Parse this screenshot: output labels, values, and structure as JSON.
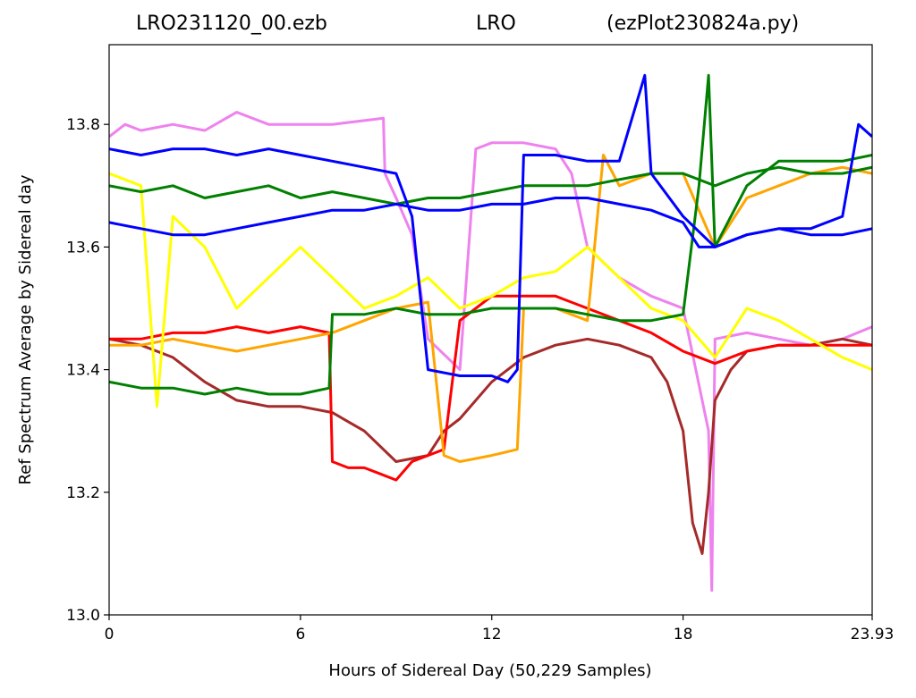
{
  "title": {
    "left": "LRO231120_00.ezb",
    "center": "LRO",
    "right": "(ezPlot230824a.py)"
  },
  "chart_data": {
    "type": "line",
    "xlabel": "Hours of Sidereal Day  (50,229 Samples)",
    "ylabel": "Ref Spectrum Average by Sidereal day",
    "xlim": [
      0,
      23.93
    ],
    "ylim": [
      13.0,
      13.93
    ],
    "xticks": [
      0,
      6,
      12,
      18,
      23.93
    ],
    "xtick_labels": [
      "0",
      "6",
      "12",
      "18",
      "23.93"
    ],
    "yticks": [
      13.0,
      13.2,
      13.4,
      13.6,
      13.8
    ],
    "ytick_labels": [
      "13.0",
      "13.2",
      "13.4",
      "13.6",
      "13.8"
    ],
    "grid": false,
    "legend": "none",
    "series": [
      {
        "color": "#ee82ee",
        "points": [
          [
            0,
            13.78
          ],
          [
            0.5,
            13.8
          ],
          [
            1,
            13.79
          ],
          [
            2,
            13.8
          ],
          [
            3,
            13.79
          ],
          [
            4,
            13.82
          ],
          [
            5,
            13.8
          ],
          [
            6,
            13.8
          ],
          [
            7,
            13.8
          ],
          [
            8.6,
            13.81
          ],
          [
            8.65,
            13.72
          ],
          [
            9,
            13.68
          ],
          [
            9.5,
            13.62
          ],
          [
            10,
            13.45
          ],
          [
            11,
            13.4
          ],
          [
            11.5,
            13.76
          ],
          [
            12,
            13.77
          ],
          [
            13,
            13.77
          ],
          [
            14,
            13.76
          ],
          [
            14.5,
            13.72
          ],
          [
            15,
            13.6
          ],
          [
            16,
            13.55
          ],
          [
            17,
            13.52
          ],
          [
            18,
            13.5
          ],
          [
            18.8,
            13.3
          ],
          [
            18.9,
            13.04
          ],
          [
            19,
            13.45
          ],
          [
            20,
            13.46
          ],
          [
            21,
            13.45
          ],
          [
            22,
            13.44
          ],
          [
            23,
            13.45
          ],
          [
            23.93,
            13.47
          ]
        ]
      },
      {
        "color": "#a52a2a",
        "points": [
          [
            0,
            13.45
          ],
          [
            1,
            13.44
          ],
          [
            2,
            13.42
          ],
          [
            3,
            13.38
          ],
          [
            4,
            13.35
          ],
          [
            5,
            13.34
          ],
          [
            6,
            13.34
          ],
          [
            7,
            13.33
          ],
          [
            8,
            13.3
          ],
          [
            9,
            13.25
          ],
          [
            10,
            13.26
          ],
          [
            10.5,
            13.3
          ],
          [
            11,
            13.32
          ],
          [
            12,
            13.38
          ],
          [
            13,
            13.42
          ],
          [
            14,
            13.44
          ],
          [
            15,
            13.45
          ],
          [
            16,
            13.44
          ],
          [
            17,
            13.42
          ],
          [
            17.5,
            13.38
          ],
          [
            18,
            13.3
          ],
          [
            18.3,
            13.15
          ],
          [
            18.6,
            13.1
          ],
          [
            18.8,
            13.2
          ],
          [
            19,
            13.35
          ],
          [
            19.5,
            13.4
          ],
          [
            20,
            13.43
          ],
          [
            21,
            13.44
          ],
          [
            22,
            13.44
          ],
          [
            23,
            13.45
          ],
          [
            23.93,
            13.44
          ]
        ]
      },
      {
        "color": "#ff0000",
        "points": [
          [
            0,
            13.45
          ],
          [
            1,
            13.45
          ],
          [
            2,
            13.46
          ],
          [
            3,
            13.46
          ],
          [
            4,
            13.47
          ],
          [
            5,
            13.46
          ],
          [
            6,
            13.47
          ],
          [
            6.9,
            13.46
          ],
          [
            7,
            13.25
          ],
          [
            7.5,
            13.24
          ],
          [
            8,
            13.24
          ],
          [
            8.5,
            13.23
          ],
          [
            9,
            13.22
          ],
          [
            9.5,
            13.25
          ],
          [
            10,
            13.26
          ],
          [
            10.5,
            13.27
          ],
          [
            11,
            13.48
          ],
          [
            11.5,
            13.5
          ],
          [
            12,
            13.52
          ],
          [
            13,
            13.52
          ],
          [
            14,
            13.52
          ],
          [
            15,
            13.5
          ],
          [
            16,
            13.48
          ],
          [
            17,
            13.46
          ],
          [
            18,
            13.43
          ],
          [
            19,
            13.41
          ],
          [
            20,
            13.43
          ],
          [
            21,
            13.44
          ],
          [
            22,
            13.44
          ],
          [
            23,
            13.44
          ],
          [
            23.93,
            13.44
          ]
        ]
      },
      {
        "color": "#ffa500",
        "points": [
          [
            0,
            13.44
          ],
          [
            1,
            13.44
          ],
          [
            2,
            13.45
          ],
          [
            3,
            13.44
          ],
          [
            4,
            13.43
          ],
          [
            5,
            13.44
          ],
          [
            6,
            13.45
          ],
          [
            7,
            13.46
          ],
          [
            8,
            13.48
          ],
          [
            9,
            13.5
          ],
          [
            10,
            13.51
          ],
          [
            10.5,
            13.26
          ],
          [
            11,
            13.25
          ],
          [
            12,
            13.26
          ],
          [
            12.8,
            13.27
          ],
          [
            13,
            13.5
          ],
          [
            14,
            13.5
          ],
          [
            15,
            13.48
          ],
          [
            15.5,
            13.75
          ],
          [
            16,
            13.7
          ],
          [
            17,
            13.72
          ],
          [
            18,
            13.72
          ],
          [
            19,
            13.6
          ],
          [
            20,
            13.68
          ],
          [
            21,
            13.7
          ],
          [
            22,
            13.72
          ],
          [
            23,
            13.73
          ],
          [
            23.93,
            13.72
          ]
        ]
      },
      {
        "color": "#ffff00",
        "points": [
          [
            0,
            13.72
          ],
          [
            1,
            13.7
          ],
          [
            1.5,
            13.34
          ],
          [
            2,
            13.65
          ],
          [
            3,
            13.6
          ],
          [
            4,
            13.5
          ],
          [
            5,
            13.55
          ],
          [
            6,
            13.6
          ],
          [
            7,
            13.55
          ],
          [
            8,
            13.5
          ],
          [
            9,
            13.52
          ],
          [
            10,
            13.55
          ],
          [
            11,
            13.5
          ],
          [
            12,
            13.52
          ],
          [
            13,
            13.55
          ],
          [
            14,
            13.56
          ],
          [
            15,
            13.6
          ],
          [
            16,
            13.55
          ],
          [
            17,
            13.5
          ],
          [
            18,
            13.48
          ],
          [
            19,
            13.42
          ],
          [
            20,
            13.5
          ],
          [
            21,
            13.48
          ],
          [
            22,
            13.45
          ],
          [
            23,
            13.42
          ],
          [
            23.93,
            13.4
          ]
        ]
      },
      {
        "color": "#008000",
        "points": [
          [
            0,
            13.38
          ],
          [
            1,
            13.37
          ],
          [
            2,
            13.37
          ],
          [
            3,
            13.36
          ],
          [
            4,
            13.37
          ],
          [
            5,
            13.36
          ],
          [
            6,
            13.36
          ],
          [
            6.9,
            13.37
          ],
          [
            7,
            13.49
          ],
          [
            8,
            13.49
          ],
          [
            9,
            13.5
          ],
          [
            10,
            13.49
          ],
          [
            11,
            13.49
          ],
          [
            12,
            13.5
          ],
          [
            13,
            13.5
          ],
          [
            14,
            13.5
          ],
          [
            15,
            13.49
          ],
          [
            16,
            13.48
          ],
          [
            17,
            13.48
          ],
          [
            18,
            13.49
          ],
          [
            18.5,
            13.7
          ],
          [
            18.8,
            13.88
          ],
          [
            19,
            13.6
          ],
          [
            20,
            13.7
          ],
          [
            21,
            13.74
          ],
          [
            22,
            13.74
          ],
          [
            23,
            13.74
          ],
          [
            23.93,
            13.75
          ]
        ]
      },
      {
        "color": "#008000",
        "points": [
          [
            0,
            13.7
          ],
          [
            1,
            13.69
          ],
          [
            2,
            13.7
          ],
          [
            3,
            13.68
          ],
          [
            4,
            13.69
          ],
          [
            5,
            13.7
          ],
          [
            6,
            13.68
          ],
          [
            7,
            13.69
          ],
          [
            8,
            13.68
          ],
          [
            9,
            13.67
          ],
          [
            10,
            13.68
          ],
          [
            11,
            13.68
          ],
          [
            12,
            13.69
          ],
          [
            13,
            13.7
          ],
          [
            14,
            13.7
          ],
          [
            15,
            13.7
          ],
          [
            16,
            13.71
          ],
          [
            17,
            13.72
          ],
          [
            18,
            13.72
          ],
          [
            19,
            13.7
          ],
          [
            20,
            13.72
          ],
          [
            21,
            13.73
          ],
          [
            22,
            13.72
          ],
          [
            23,
            13.72
          ],
          [
            23.93,
            13.73
          ]
        ]
      },
      {
        "color": "#0000ff",
        "points": [
          [
            0,
            13.76
          ],
          [
            1,
            13.75
          ],
          [
            2,
            13.76
          ],
          [
            3,
            13.76
          ],
          [
            4,
            13.75
          ],
          [
            5,
            13.76
          ],
          [
            6,
            13.75
          ],
          [
            7,
            13.74
          ],
          [
            8,
            13.73
          ],
          [
            9,
            13.72
          ],
          [
            9.5,
            13.65
          ],
          [
            10,
            13.4
          ],
          [
            11,
            13.39
          ],
          [
            12,
            13.39
          ],
          [
            12.5,
            13.38
          ],
          [
            12.8,
            13.4
          ],
          [
            13,
            13.75
          ],
          [
            14,
            13.75
          ],
          [
            15,
            13.74
          ],
          [
            16,
            13.74
          ],
          [
            16.8,
            13.88
          ],
          [
            17,
            13.72
          ],
          [
            18,
            13.65
          ],
          [
            19,
            13.6
          ],
          [
            20,
            13.62
          ],
          [
            21,
            13.63
          ],
          [
            22,
            13.63
          ],
          [
            23,
            13.65
          ],
          [
            23.5,
            13.8
          ],
          [
            23.93,
            13.78
          ]
        ]
      },
      {
        "color": "#0000ff",
        "points": [
          [
            0,
            13.64
          ],
          [
            1,
            13.63
          ],
          [
            2,
            13.62
          ],
          [
            3,
            13.62
          ],
          [
            4,
            13.63
          ],
          [
            5,
            13.64
          ],
          [
            6,
            13.65
          ],
          [
            7,
            13.66
          ],
          [
            8,
            13.66
          ],
          [
            9,
            13.67
          ],
          [
            10,
            13.66
          ],
          [
            11,
            13.66
          ],
          [
            12,
            13.67
          ],
          [
            13,
            13.67
          ],
          [
            14,
            13.68
          ],
          [
            15,
            13.68
          ],
          [
            16,
            13.67
          ],
          [
            17,
            13.66
          ],
          [
            18,
            13.64
          ],
          [
            18.5,
            13.6
          ],
          [
            19,
            13.6
          ],
          [
            20,
            13.62
          ],
          [
            21,
            13.63
          ],
          [
            22,
            13.62
          ],
          [
            23,
            13.62
          ],
          [
            23.93,
            13.63
          ]
        ]
      }
    ]
  }
}
